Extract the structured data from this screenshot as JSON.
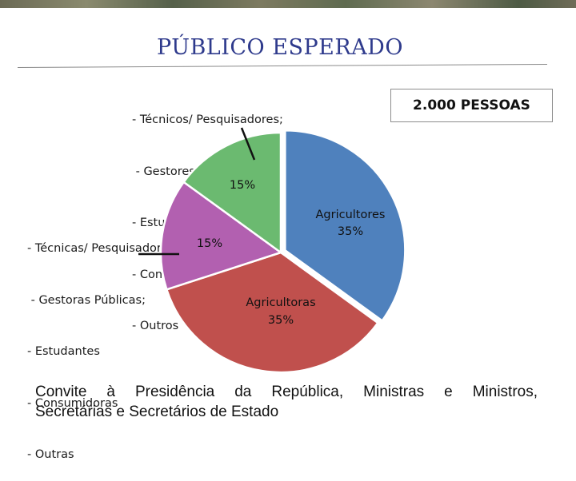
{
  "title": "PÚBLICO ESPERADO",
  "people_box": "2.000 PESSOAS",
  "legend_male": [
    "- Técnicos/ Pesquisadores;",
    " - Gestores Públicos;",
    "- Estudantes",
    "- Consumidores",
    "- Outros"
  ],
  "legend_female": [
    "- Técnicas/ Pesquisadoras;",
    " - Gestoras Públicas;",
    "- Estudantes",
    "- Consumidoras",
    "- Outras"
  ],
  "footer": {
    "line1": "Convite à Presidência da República, Ministras e Ministros,",
    "line2": "Secretárias e Secretários de Estado"
  },
  "colors": {
    "title": "#2e3a8c",
    "blue": "#4f81bd",
    "red": "#c0504d",
    "green": "#6bba70",
    "purple": "#b260b0"
  },
  "chart_data": {
    "type": "pie",
    "title": "",
    "slices": [
      {
        "label": "Agricultores",
        "value": 35,
        "display": "35%",
        "color": "#4f81bd"
      },
      {
        "label": "Agricultoras",
        "value": 35,
        "display": "35%",
        "color": "#c0504d"
      },
      {
        "label": "",
        "value": 15,
        "display": "15%",
        "color": "#b260b0"
      },
      {
        "label": "",
        "value": 15,
        "display": "15%",
        "color": "#6bba70"
      }
    ]
  }
}
